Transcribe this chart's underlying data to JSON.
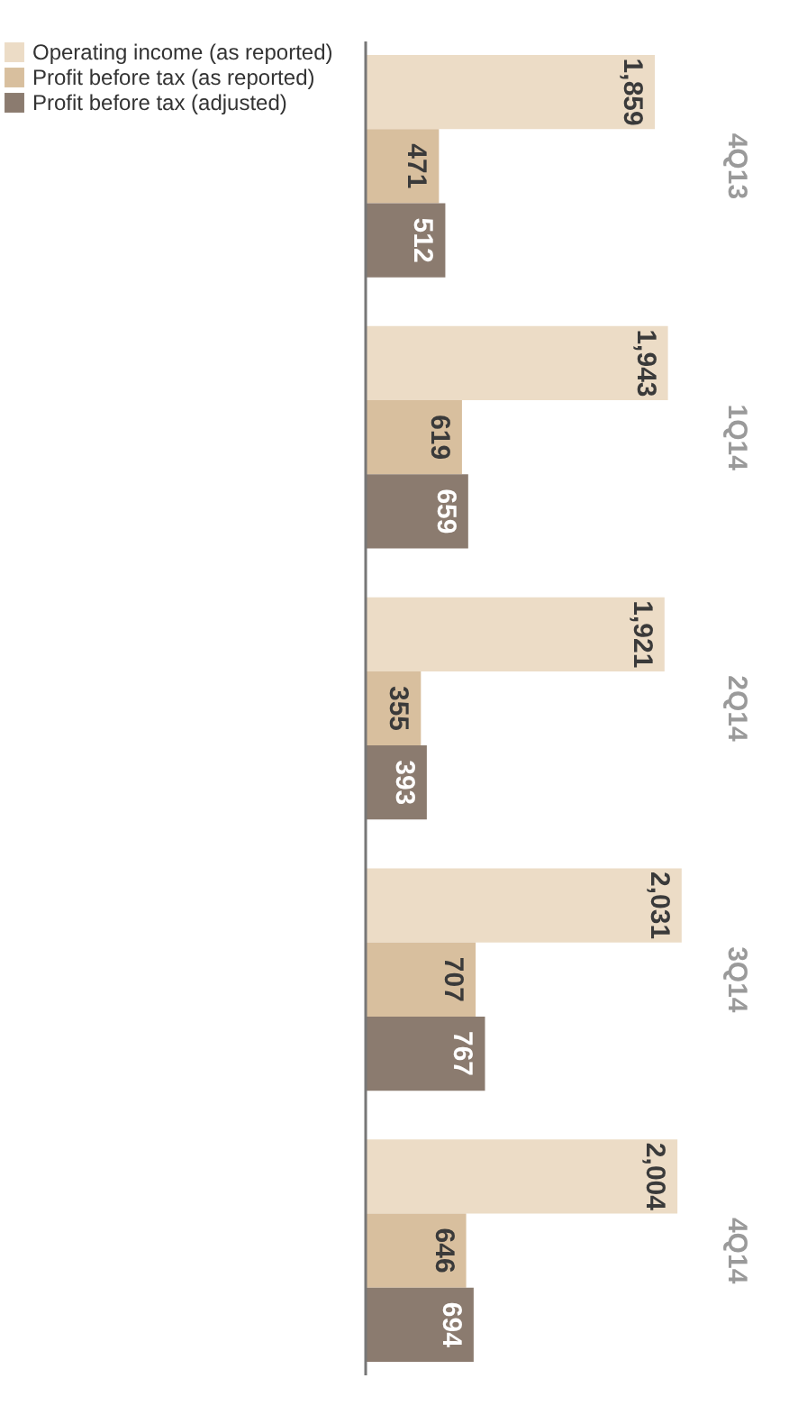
{
  "chart_data": {
    "type": "bar",
    "orientation": "horizontal",
    "categories": [
      "4Q13",
      "1Q14",
      "2Q14",
      "3Q14",
      "4Q14"
    ],
    "series": [
      {
        "name": "Operating income (as reported)",
        "color": "#ecdcc6",
        "values": [
          1859,
          1943,
          1921,
          2031,
          2004
        ],
        "value_labels": [
          "1,859",
          "1,943",
          "1,921",
          "2,031",
          "2,004"
        ]
      },
      {
        "name": "Profit before tax (as reported)",
        "color": "#d8bf9e",
        "values": [
          471,
          619,
          355,
          707,
          646
        ]
      },
      {
        "name": "Profit before tax (adjusted)",
        "color": "#8b7b6f",
        "values": [
          512,
          659,
          393,
          767,
          694
        ]
      }
    ],
    "data_labels": true,
    "tick_labels": "y",
    "legend": "left",
    "grid": false
  }
}
